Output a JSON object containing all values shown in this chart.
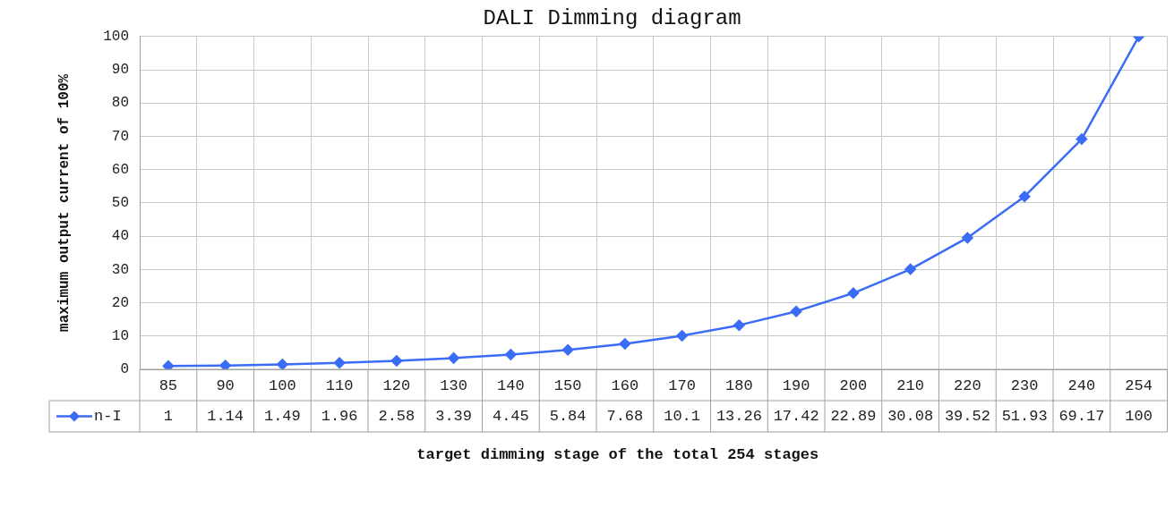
{
  "chart_data": {
    "type": "line",
    "title": "DALI Dimming diagram",
    "xlabel": "target dimming stage of the total 254 stages",
    "ylabel": "maximum output current of 100%",
    "categories": [
      "85",
      "90",
      "100",
      "110",
      "120",
      "130",
      "140",
      "150",
      "160",
      "170",
      "180",
      "190",
      "200",
      "210",
      "220",
      "230",
      "240",
      "254"
    ],
    "series": [
      {
        "name": "n-I",
        "color": "#3b6cf6",
        "values": [
          1,
          1.14,
          1.49,
          1.96,
          2.58,
          3.39,
          4.45,
          5.84,
          7.68,
          10.1,
          13.26,
          17.42,
          22.89,
          30.08,
          39.52,
          51.93,
          69.17,
          100
        ]
      }
    ],
    "ylim": [
      0,
      100
    ],
    "yticks": [
      0,
      10,
      20,
      30,
      40,
      50,
      60,
      70,
      80,
      90,
      100
    ],
    "grid": true,
    "legend": "bottom left",
    "marker": "diamond",
    "line_style": "solid",
    "data_labels": true
  }
}
